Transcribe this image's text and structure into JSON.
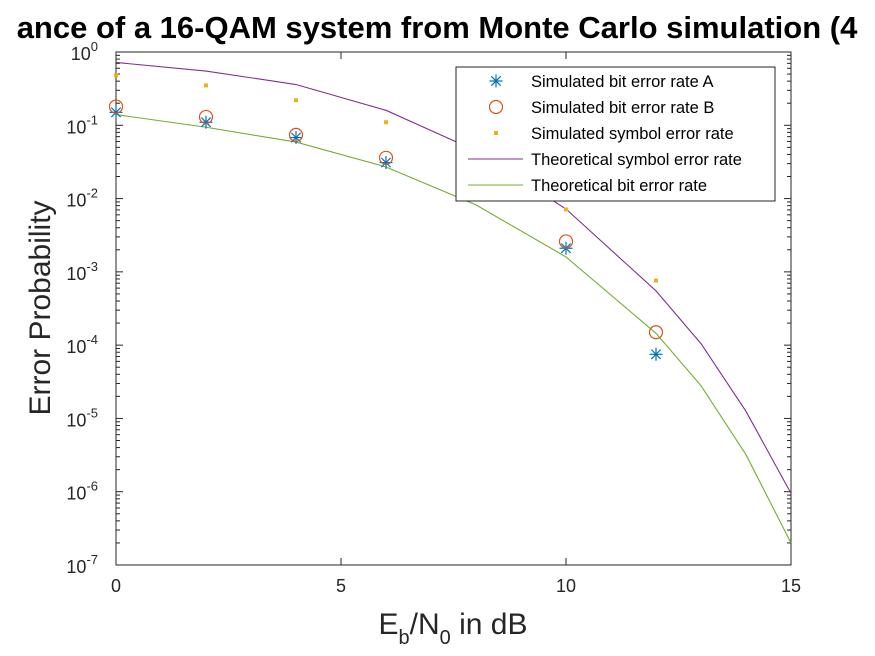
{
  "chart_data": {
    "type": "line",
    "title": "ance of a 16-QAM system from Monte Carlo simulation (4",
    "xlabel": {
      "base": "E",
      "sub1": "b",
      "mid": "/N",
      "sub2": "0",
      "tail": " in dB"
    },
    "ylabel": "Error Probability",
    "xlim": [
      0,
      15
    ],
    "ylim": [
      1e-07,
      1
    ],
    "yscale": "log",
    "grid": false,
    "legend_position": "top-right",
    "x_ticks": [
      {
        "value": 0,
        "label": "0"
      },
      {
        "value": 5,
        "label": "5"
      },
      {
        "value": 10,
        "label": "10"
      },
      {
        "value": 15,
        "label": "15"
      }
    ],
    "y_ticks": [
      {
        "exp": 0,
        "base": "10",
        "power": "0"
      },
      {
        "exp": -1,
        "base": "10",
        "power": "-1"
      },
      {
        "exp": -2,
        "base": "10",
        "power": "-2"
      },
      {
        "exp": -3,
        "base": "10",
        "power": "-3"
      },
      {
        "exp": -4,
        "base": "10",
        "power": "-4"
      },
      {
        "exp": -5,
        "base": "10",
        "power": "-5"
      },
      {
        "exp": -6,
        "base": "10",
        "power": "-6"
      },
      {
        "exp": -7,
        "base": "10",
        "power": "-7"
      }
    ],
    "series": [
      {
        "name": "Simulated bit error rate A",
        "kind": "marker",
        "marker": "asterisk",
        "color": "#0072BD",
        "x": [
          0,
          2,
          4,
          6,
          10,
          12
        ],
        "y": [
          0.15,
          0.11,
          0.068,
          0.031,
          0.0021,
          7.5e-05
        ]
      },
      {
        "name": "Simulated bit error rate B",
        "kind": "marker",
        "marker": "circle",
        "color": "#D95319",
        "x": [
          0,
          2,
          4,
          6,
          10,
          12
        ],
        "y": [
          0.18,
          0.13,
          0.074,
          0.036,
          0.0026,
          0.00015
        ]
      },
      {
        "name": "Simulated symbol error rate",
        "kind": "marker",
        "marker": "dot",
        "color": "#EDB120",
        "x": [
          0,
          2,
          4,
          6,
          10,
          12
        ],
        "y": [
          0.48,
          0.35,
          0.22,
          0.11,
          0.0071,
          0.00076
        ]
      },
      {
        "name": "Theoretical symbol error rate",
        "kind": "line",
        "color": "#7E2F8E",
        "x": [
          0,
          2,
          4,
          6,
          8,
          10,
          12,
          13,
          14,
          15
        ],
        "y": [
          0.72,
          0.55,
          0.36,
          0.16,
          0.045,
          0.0072,
          0.00055,
          0.000105,
          1.25e-05,
          9.5e-07
        ]
      },
      {
        "name": "Theoretical bit error rate",
        "kind": "line",
        "color": "#77AC30",
        "x": [
          0,
          2,
          4,
          6,
          8,
          10,
          12,
          13,
          14,
          15
        ],
        "y": [
          0.14,
          0.094,
          0.059,
          0.027,
          0.0082,
          0.0016,
          0.000145,
          2.8e-05,
          3.2e-06,
          2e-07
        ]
      }
    ]
  }
}
